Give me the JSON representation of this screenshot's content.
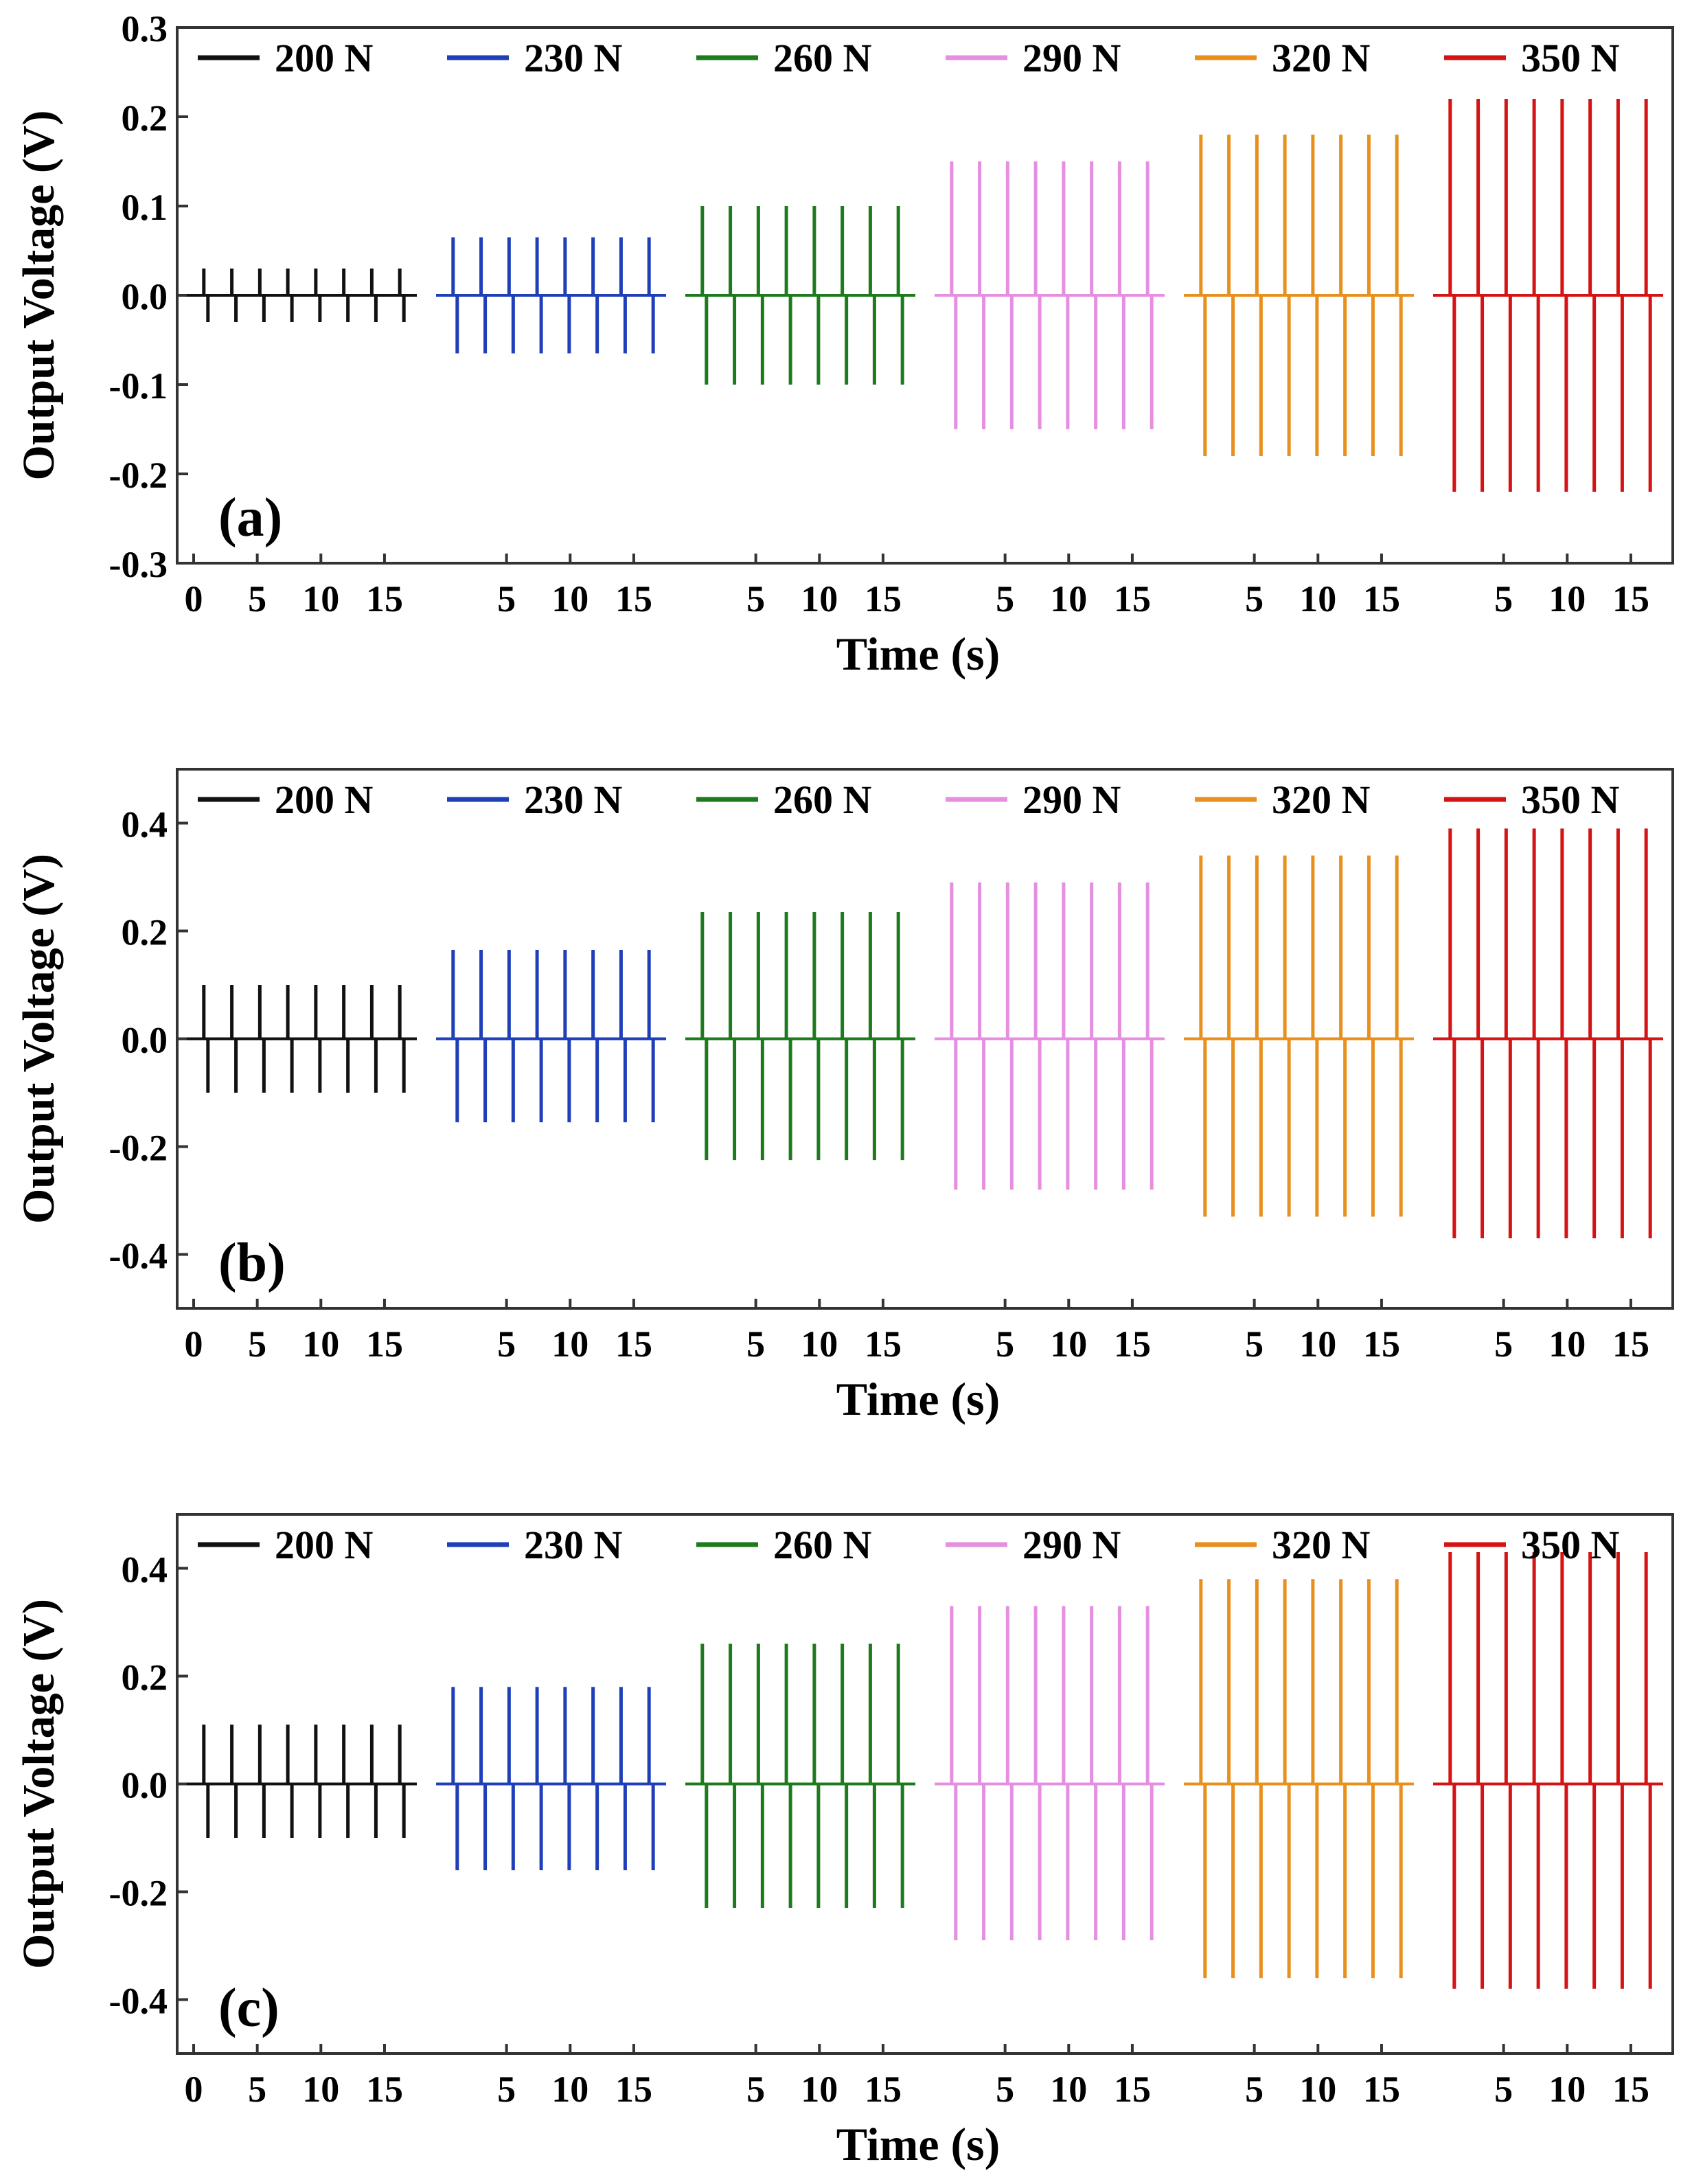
{
  "chart_data": [
    {
      "type": "line",
      "panel_label": "(a)",
      "xlabel": "Time (s)",
      "ylabel": "Output Voltage (V)",
      "ylim": [
        -0.3,
        0.3
      ],
      "y_ticks": [
        "0.3",
        "0.2",
        "0.1",
        "0.0",
        "-0.1",
        "-0.2",
        "-0.3"
      ],
      "y_tick_values": [
        0.3,
        0.2,
        0.1,
        0.0,
        -0.1,
        -0.2,
        -0.3
      ],
      "x_range_per_segment": [
        0,
        17
      ],
      "x_tick_values_first": [
        0,
        5,
        10,
        15
      ],
      "x_tick_values_other": [
        5,
        10,
        15
      ],
      "x_tick_labels_first": [
        "0",
        "5",
        "10",
        "15"
      ],
      "x_tick_labels_other": [
        "5",
        "10",
        "15"
      ],
      "legend_position": "top",
      "series": [
        {
          "name": "200 N",
          "color": "#111111",
          "peaks": 8,
          "pos_peak": 0.03,
          "neg_peak": -0.03
        },
        {
          "name": "230 N",
          "color": "#1f3fb8",
          "peaks": 8,
          "pos_peak": 0.065,
          "neg_peak": -0.065
        },
        {
          "name": "260 N",
          "color": "#1d7a1d",
          "peaks": 8,
          "pos_peak": 0.1,
          "neg_peak": -0.1
        },
        {
          "name": "290 N",
          "color": "#e58fe0",
          "peaks": 8,
          "pos_peak": 0.15,
          "neg_peak": -0.15
        },
        {
          "name": "320 N",
          "color": "#e8901e",
          "peaks": 8,
          "pos_peak": 0.18,
          "neg_peak": -0.18
        },
        {
          "name": "350 N",
          "color": "#d41414",
          "peaks": 8,
          "pos_peak": 0.22,
          "neg_peak": -0.22
        }
      ]
    },
    {
      "type": "line",
      "panel_label": "(b)",
      "xlabel": "Time (s)",
      "ylabel": "Output Voltage (V)",
      "ylim": [
        -0.5,
        0.5
      ],
      "y_ticks": [
        "0.4",
        "0.2",
        "0.0",
        "-0.2",
        "-0.4"
      ],
      "y_tick_values": [
        0.4,
        0.2,
        0.0,
        -0.2,
        -0.4
      ],
      "x_range_per_segment": [
        0,
        17
      ],
      "x_tick_values_first": [
        0,
        5,
        10,
        15
      ],
      "x_tick_values_other": [
        5,
        10,
        15
      ],
      "x_tick_labels_first": [
        "0",
        "5",
        "10",
        "15"
      ],
      "x_tick_labels_other": [
        "5",
        "10",
        "15"
      ],
      "legend_position": "top",
      "series": [
        {
          "name": "200 N",
          "color": "#111111",
          "peaks": 8,
          "pos_peak": 0.1,
          "neg_peak": -0.1
        },
        {
          "name": "230 N",
          "color": "#1f3fb8",
          "peaks": 8,
          "pos_peak": 0.165,
          "neg_peak": -0.155
        },
        {
          "name": "260 N",
          "color": "#1d7a1d",
          "peaks": 8,
          "pos_peak": 0.235,
          "neg_peak": -0.225
        },
        {
          "name": "290 N",
          "color": "#e58fe0",
          "peaks": 8,
          "pos_peak": 0.29,
          "neg_peak": -0.28
        },
        {
          "name": "320 N",
          "color": "#e8901e",
          "peaks": 8,
          "pos_peak": 0.34,
          "neg_peak": -0.33
        },
        {
          "name": "350 N",
          "color": "#d41414",
          "peaks": 8,
          "pos_peak": 0.39,
          "neg_peak": -0.37
        }
      ]
    },
    {
      "type": "line",
      "panel_label": "(c)",
      "xlabel": "Time (s)",
      "ylabel": "Output Voltage (V)",
      "ylim": [
        -0.5,
        0.5
      ],
      "y_ticks": [
        "0.4",
        "0.2",
        "0.0",
        "-0.2",
        "-0.4"
      ],
      "y_tick_values": [
        0.4,
        0.2,
        0.0,
        -0.2,
        -0.4
      ],
      "x_range_per_segment": [
        0,
        17
      ],
      "x_tick_values_first": [
        0,
        5,
        10,
        15
      ],
      "x_tick_values_other": [
        5,
        10,
        15
      ],
      "x_tick_labels_first": [
        "0",
        "5",
        "10",
        "15"
      ],
      "x_tick_labels_other": [
        "5",
        "10",
        "15"
      ],
      "legend_position": "top",
      "series": [
        {
          "name": "200 N",
          "color": "#111111",
          "peaks": 8,
          "pos_peak": 0.11,
          "neg_peak": -0.1
        },
        {
          "name": "230 N",
          "color": "#1f3fb8",
          "peaks": 8,
          "pos_peak": 0.18,
          "neg_peak": -0.16
        },
        {
          "name": "260 N",
          "color": "#1d7a1d",
          "peaks": 8,
          "pos_peak": 0.26,
          "neg_peak": -0.23
        },
        {
          "name": "290 N",
          "color": "#e58fe0",
          "peaks": 8,
          "pos_peak": 0.33,
          "neg_peak": -0.29
        },
        {
          "name": "320 N",
          "color": "#e8901e",
          "peaks": 8,
          "pos_peak": 0.38,
          "neg_peak": -0.36
        },
        {
          "name": "350 N",
          "color": "#d41414",
          "peaks": 8,
          "pos_peak": 0.43,
          "neg_peak": -0.38
        }
      ]
    }
  ]
}
